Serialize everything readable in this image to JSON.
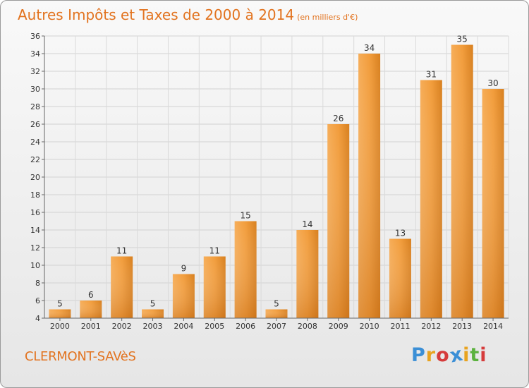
{
  "title": "Autres Impôts et Taxes de 2000 à 2014",
  "unit": "(en milliers d'€)",
  "commune": "CLERMONT-SAVèS",
  "logo": {
    "letters": [
      "P",
      "r",
      "o",
      "x",
      "i",
      "t",
      "i"
    ],
    "colors": [
      "#3b8fd6",
      "#e8a320",
      "#d63b3b",
      "#3b8fd6",
      "#e8a320",
      "#5bb23e",
      "#d63b3b"
    ]
  },
  "chart_data": {
    "type": "bar",
    "categories": [
      "2000",
      "2001",
      "2002",
      "2003",
      "2004",
      "2005",
      "2006",
      "2007",
      "2008",
      "2009",
      "2010",
      "2011",
      "2012",
      "2013",
      "2014"
    ],
    "values": [
      5,
      6,
      11,
      5,
      9,
      11,
      15,
      5,
      14,
      26,
      34,
      13,
      31,
      35,
      30
    ],
    "ylim": [
      4,
      36
    ],
    "yticks": [
      4,
      6,
      8,
      10,
      12,
      14,
      16,
      18,
      20,
      22,
      24,
      26,
      28,
      30,
      32,
      34,
      36
    ],
    "grid": true,
    "bar_color": "#f29d3c"
  }
}
